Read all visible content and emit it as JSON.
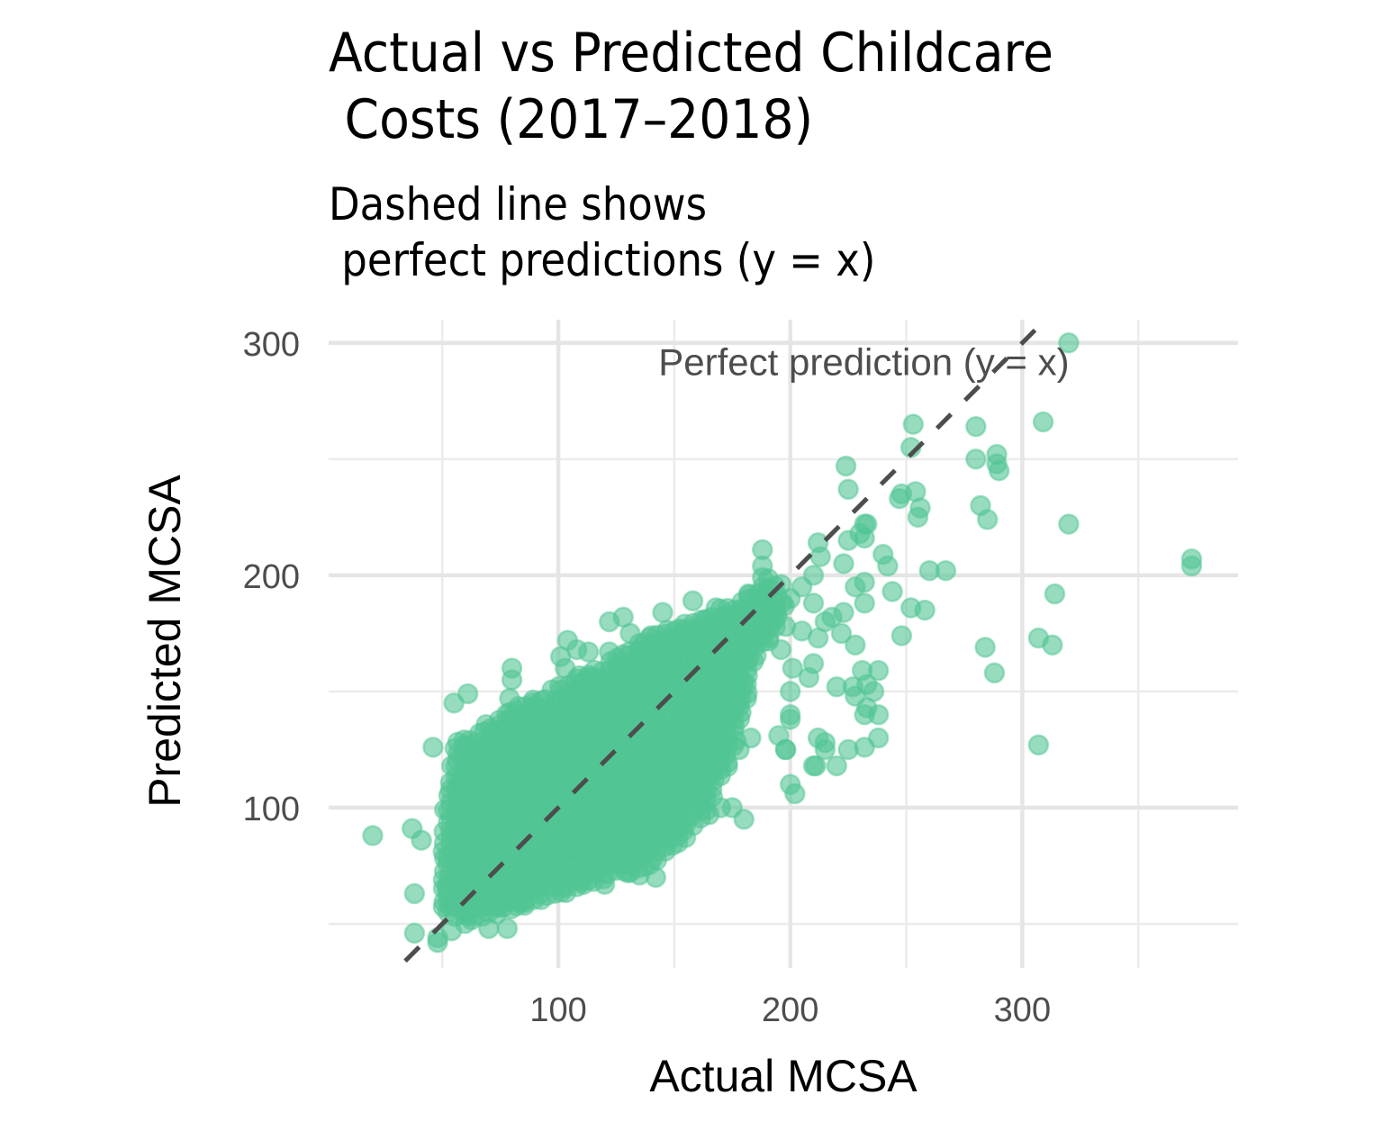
{
  "chart_data": {
    "type": "scatter",
    "title": "Actual vs Predicted Childcare\n Costs (2017–2018)",
    "subtitle": "Dashed line shows\n perfect predictions (y = x)",
    "xlabel": "Actual MCSA",
    "ylabel": "Predicted MCSA",
    "xlim": [
      1,
      393
    ],
    "ylim": [
      31,
      310
    ],
    "x_ticks": [
      100,
      200,
      300
    ],
    "x_tick_labels": [
      "100",
      "200",
      "300"
    ],
    "y_ticks": [
      100,
      200,
      300
    ],
    "y_tick_labels": [
      "100",
      "200",
      "300"
    ],
    "x_minor": [
      50,
      150,
      250,
      350
    ],
    "y_minor": [
      50,
      150,
      250
    ],
    "grid": true,
    "legend": "none",
    "point_color": "#52C594",
    "point_alpha": 0.6,
    "reference_line": {
      "type": "y=x",
      "style": "dashed",
      "color": "#4d4d4d",
      "from": 34,
      "to": 311
    },
    "annotation": {
      "text": "Perfect prediction (y = x)",
      "x": 255,
      "y": 297
    },
    "cluster_regions": [
      {
        "name": "dense-core",
        "polygon": [
          [
            50,
            55
          ],
          [
            50,
            100
          ],
          [
            55,
            128
          ],
          [
            75,
            140
          ],
          [
            95,
            150
          ],
          [
            115,
            160
          ],
          [
            135,
            172
          ],
          [
            150,
            178
          ],
          [
            168,
            185
          ],
          [
            188,
            195
          ],
          [
            190,
            200
          ],
          [
            200,
            190
          ],
          [
            185,
            160
          ],
          [
            180,
            140
          ],
          [
            175,
            120
          ],
          [
            165,
            100
          ],
          [
            155,
            85
          ],
          [
            140,
            75
          ],
          [
            120,
            68
          ],
          [
            100,
            62
          ],
          [
            80,
            56
          ],
          [
            60,
            50
          ]
        ]
      }
    ],
    "points": [
      [
        20,
        88
      ],
      [
        37,
        91
      ],
      [
        41,
        86
      ],
      [
        38,
        63
      ],
      [
        38,
        46
      ],
      [
        48,
        44
      ],
      [
        52,
        65
      ],
      [
        46,
        126
      ],
      [
        55,
        145
      ],
      [
        61,
        149
      ],
      [
        66,
        125
      ],
      [
        72,
        133
      ],
      [
        80,
        155
      ],
      [
        80,
        160
      ],
      [
        80,
        139
      ],
      [
        79,
        147
      ],
      [
        89,
        145
      ],
      [
        88,
        119
      ],
      [
        91,
        128
      ],
      [
        101,
        165
      ],
      [
        104,
        172
      ],
      [
        108,
        168
      ],
      [
        103,
        160
      ],
      [
        113,
        167
      ],
      [
        113,
        157
      ],
      [
        122,
        167
      ],
      [
        122,
        180
      ],
      [
        128,
        182
      ],
      [
        131,
        175
      ],
      [
        135,
        168
      ],
      [
        140,
        174
      ],
      [
        145,
        184
      ],
      [
        150,
        176
      ],
      [
        157,
        172
      ],
      [
        158,
        189
      ],
      [
        164,
        181
      ],
      [
        168,
        186
      ],
      [
        172,
        178
      ],
      [
        175,
        167
      ],
      [
        178,
        171
      ],
      [
        182,
        192
      ],
      [
        188,
        190
      ],
      [
        188,
        211
      ],
      [
        188,
        204
      ],
      [
        188,
        199
      ],
      [
        190,
        194
      ],
      [
        196,
        196
      ],
      [
        200,
        190
      ],
      [
        205,
        195
      ],
      [
        210,
        200
      ],
      [
        212,
        214
      ],
      [
        213,
        208
      ],
      [
        223,
        205
      ],
      [
        225,
        215
      ],
      [
        228,
        195
      ],
      [
        232,
        197
      ],
      [
        230,
        218
      ],
      [
        232,
        222
      ],
      [
        240,
        209
      ],
      [
        242,
        204
      ],
      [
        244,
        193
      ],
      [
        232,
        188
      ],
      [
        228,
        170
      ],
      [
        222,
        175
      ],
      [
        212,
        173
      ],
      [
        218,
        182
      ],
      [
        224,
        247
      ],
      [
        225,
        237
      ],
      [
        233,
        222
      ],
      [
        232,
        216
      ],
      [
        247,
        233
      ],
      [
        248,
        235
      ],
      [
        254,
        236
      ],
      [
        256,
        229
      ],
      [
        255,
        225
      ],
      [
        252,
        255
      ],
      [
        253,
        265
      ],
      [
        260,
        202
      ],
      [
        267,
        202
      ],
      [
        258,
        185
      ],
      [
        252,
        186
      ],
      [
        248,
        174
      ],
      [
        280,
        264
      ],
      [
        280,
        250
      ],
      [
        282,
        230
      ],
      [
        285,
        224
      ],
      [
        289,
        252
      ],
      [
        290,
        245
      ],
      [
        289,
        248
      ],
      [
        309,
        266
      ],
      [
        320,
        222
      ],
      [
        314,
        192
      ],
      [
        307,
        173
      ],
      [
        313,
        170
      ],
      [
        320,
        300
      ],
      [
        373,
        207
      ],
      [
        373,
        204
      ],
      [
        307,
        127
      ],
      [
        284,
        169
      ],
      [
        288,
        158
      ],
      [
        225,
        125
      ],
      [
        232,
        126
      ],
      [
        215,
        125
      ],
      [
        215,
        128
      ],
      [
        220,
        118
      ],
      [
        210,
        118
      ],
      [
        212,
        130
      ],
      [
        198,
        125
      ],
      [
        200,
        110
      ],
      [
        202,
        106
      ],
      [
        178,
        125
      ],
      [
        183,
        130
      ],
      [
        180,
        95
      ],
      [
        175,
        100
      ],
      [
        170,
        100
      ],
      [
        165,
        97
      ],
      [
        160,
        110
      ],
      [
        165,
        135
      ],
      [
        168,
        145
      ],
      [
        172,
        150
      ],
      [
        220,
        152
      ],
      [
        228,
        148
      ],
      [
        232,
        140
      ],
      [
        233,
        143
      ],
      [
        238,
        140
      ],
      [
        236,
        150
      ],
      [
        238,
        130
      ],
      [
        227,
        152
      ],
      [
        231,
        159
      ],
      [
        233,
        153
      ],
      [
        238,
        159
      ],
      [
        223,
        184
      ],
      [
        215,
        180
      ],
      [
        210,
        188
      ],
      [
        205,
        176
      ],
      [
        198,
        178
      ],
      [
        194,
        184
      ],
      [
        196,
        168
      ],
      [
        208,
        156
      ],
      [
        210,
        162
      ],
      [
        201,
        160
      ],
      [
        200,
        150
      ],
      [
        200,
        140
      ],
      [
        200,
        138
      ],
      [
        198,
        125
      ],
      [
        195,
        131
      ],
      [
        211,
        118
      ],
      [
        142,
        70
      ],
      [
        135,
        71
      ],
      [
        130,
        72
      ],
      [
        120,
        67
      ],
      [
        110,
        68
      ],
      [
        100,
        70
      ],
      [
        85,
        60
      ],
      [
        75,
        58
      ],
      [
        70,
        55
      ],
      [
        60,
        55
      ],
      [
        54,
        47
      ],
      [
        48,
        42
      ],
      [
        70,
        48
      ],
      [
        78,
        48
      ]
    ]
  }
}
